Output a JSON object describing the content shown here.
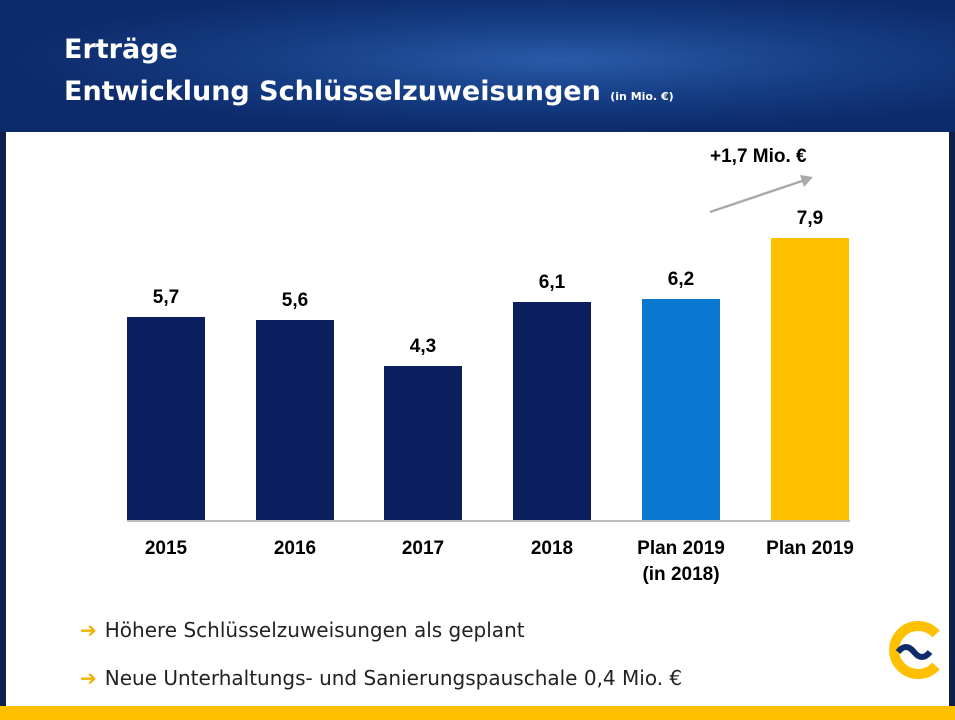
{
  "header": {
    "title": "Erträge",
    "subtitle": "Entwicklung Schlüsselzuweisungen",
    "unit": "(in Mio. €)"
  },
  "chart_data": {
    "type": "bar",
    "categories": [
      "2015",
      "2016",
      "2017",
      "2018",
      "Plan 2019\n(in 2018)",
      "Plan 2019"
    ],
    "values": [
      5.7,
      5.6,
      4.3,
      6.1,
      6.2,
      7.9
    ],
    "value_labels": [
      "5,7",
      "5,6",
      "4,3",
      "6,1",
      "6,2",
      "7,9"
    ],
    "colors": [
      "#0b1f5e",
      "#0b1f5e",
      "#0b1f5e",
      "#0b1f5e",
      "#0a78d0",
      "#ffc000"
    ],
    "ylim": [
      0,
      10
    ],
    "annotation": "+1,7 Mio. €"
  },
  "bullets": [
    "Höhere Schlüsselzuweisungen als geplant",
    "Neue Unterhaltungs- und Sanierungspauschale 0,4 Mio. €"
  ]
}
